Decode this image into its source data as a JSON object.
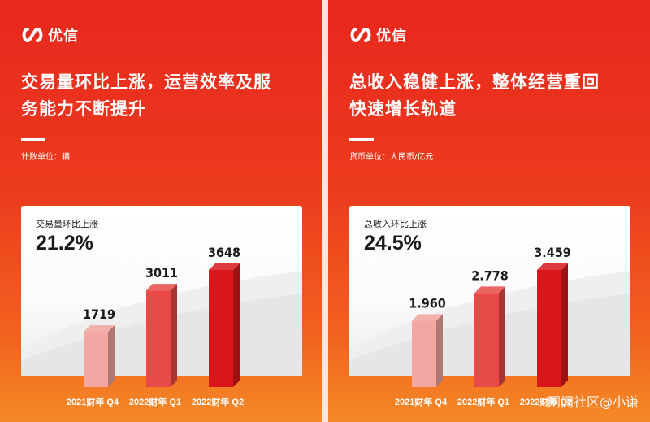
{
  "brand": {
    "name": "优信"
  },
  "panels": [
    {
      "headline_line1": "交易量环比上涨，运营效率及服",
      "headline_line2": "务能力不断提升",
      "unit": "计数单位：辆",
      "card_title": "交易量环比上涨",
      "card_pct": "21.2%"
    },
    {
      "headline_line1": "总收入稳健上涨，整体经营重回",
      "headline_line2": "快速增长轨道",
      "unit": "货币单位：人民币/亿元",
      "card_title": "总收入环比上涨",
      "card_pct": "24.5%"
    }
  ],
  "watermark": "网闻社区@小谦",
  "colors": {
    "bar_light": "#f3a6a2",
    "bar_mid": "#e84a47",
    "bar_dark": "#d9171b"
  },
  "chart_data": [
    {
      "type": "bar",
      "categories": [
        "2021财年 Q4",
        "2022财年 Q1",
        "2022财年 Q2"
      ],
      "values": [
        1719,
        3011,
        3648
      ],
      "labels": [
        "1719",
        "3011",
        "3648"
      ],
      "title": "交易量环比上涨",
      "xlabel": "",
      "ylabel": "",
      "ylim": [
        0,
        3648
      ]
    },
    {
      "type": "bar",
      "categories": [
        "2021财年 Q4",
        "2022财年 Q1",
        "2022财年 Q2"
      ],
      "values": [
        1.96,
        2.778,
        3.459
      ],
      "labels": [
        "1.960",
        "2.778",
        "3.459"
      ],
      "title": "总收入环比上涨",
      "xlabel": "",
      "ylabel": "",
      "ylim": [
        0,
        3.459
      ]
    }
  ]
}
